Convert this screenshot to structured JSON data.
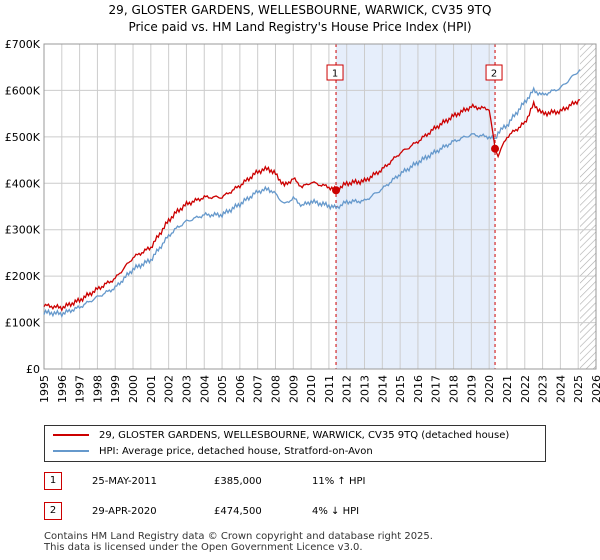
{
  "header": {
    "title": "29, GLOSTER GARDENS, WELLESBOURNE, WARWICK, CV35 9TQ",
    "subtitle": "Price paid vs. HM Land Registry's House Price Index (HPI)"
  },
  "chart_data": {
    "type": "line",
    "title": "29, GLOSTER GARDENS, WELLESBOURNE, WARWICK, CV35 9TQ",
    "subtitle": "Price paid vs. HM Land Registry's House Price Index (HPI)",
    "xlabel": "",
    "ylabel": "",
    "xlim": [
      1995,
      2026
    ],
    "ylim": [
      0,
      700000
    ],
    "yticks": [
      0,
      100000,
      200000,
      300000,
      400000,
      500000,
      600000,
      700000
    ],
    "ytick_labels": [
      "£0",
      "£100K",
      "£200K",
      "£300K",
      "£400K",
      "£500K",
      "£600K",
      "£700K"
    ],
    "xticks": [
      1995,
      1996,
      1997,
      1998,
      1999,
      2000,
      2001,
      2002,
      2003,
      2004,
      2005,
      2006,
      2007,
      2008,
      2009,
      2010,
      2011,
      2012,
      2013,
      2014,
      2015,
      2016,
      2017,
      2018,
      2019,
      2020,
      2021,
      2022,
      2023,
      2024,
      2025,
      2026
    ],
    "xtick_labels": [
      "1995",
      "1996",
      "1997",
      "1998",
      "1999",
      "2000",
      "2001",
      "2002",
      "2003",
      "2004",
      "2005",
      "2006",
      "2007",
      "2008",
      "2009",
      "2010",
      "2011",
      "2012",
      "2013",
      "2014",
      "2015",
      "2016",
      "2017",
      "2018",
      "2019",
      "2020",
      "2021",
      "2022",
      "2023",
      "2024",
      "2025",
      "2026"
    ],
    "grid": true,
    "shaded_period": [
      2011.4,
      2020.33
    ],
    "hatched_from": 2025.1,
    "series": [
      {
        "name": "29, GLOSTER GARDENS, WELLESBOURNE, WARWICK, CV35 9TQ (detached house)",
        "color": "#cc0000",
        "x": [
          1995,
          1996,
          1997,
          1998,
          1999,
          2000,
          2001,
          2002,
          2002.5,
          2003,
          2004,
          2005,
          2006,
          2007,
          2007.6,
          2008,
          2008.5,
          2009,
          2009.5,
          2010,
          2011,
          2011.4,
          2012,
          2013,
          2014,
          2015,
          2016,
          2017,
          2018,
          2019,
          2020,
          2020.33,
          2020.5,
          2021,
          2022,
          2022.5,
          2023,
          2024,
          2025.1
        ],
        "values": [
          137000,
          132000,
          148000,
          172000,
          195000,
          240000,
          262000,
          320000,
          340000,
          355000,
          370000,
          370000,
          395000,
          425000,
          432000,
          420000,
          395000,
          410000,
          392000,
          402000,
          392000,
          385000,
          400000,
          405000,
          430000,
          465000,
          490000,
          520000,
          545000,
          565000,
          560000,
          474500,
          460000,
          500000,
          530000,
          570000,
          550000,
          555000,
          580000
        ]
      },
      {
        "name": "HPI: Average price, detached house, Stratford-on-Avon",
        "color": "#6699cc",
        "x": [
          1995,
          1996,
          1997,
          1998,
          1999,
          2000,
          2001,
          2002,
          2002.5,
          2003,
          2004,
          2005,
          2006,
          2007,
          2007.6,
          2008,
          2008.5,
          2009,
          2009.5,
          2010,
          2011,
          2011.4,
          2012,
          2013,
          2014,
          2015,
          2016,
          2017,
          2018,
          2019,
          2020,
          2020.33,
          2020.5,
          2021,
          2022,
          2022.5,
          2023,
          2024,
          2025.1
        ],
        "values": [
          122000,
          119000,
          133000,
          155000,
          175000,
          215000,
          235000,
          287000,
          305000,
          318000,
          332000,
          332000,
          355000,
          382000,
          388000,
          377000,
          355000,
          368000,
          352000,
          361000,
          352000,
          347000,
          360000,
          362000,
          388000,
          420000,
          445000,
          468000,
          490000,
          505000,
          500000,
          494000,
          510000,
          525000,
          575000,
          600000,
          590000,
          605000,
          645000
        ]
      }
    ],
    "annotations": [
      {
        "label": "1",
        "x": 2011.4,
        "value": 385000
      },
      {
        "label": "2",
        "x": 2020.33,
        "value": 474500
      }
    ]
  },
  "legend": {
    "series1": "29, GLOSTER GARDENS, WELLESBOURNE, WARWICK, CV35 9TQ (detached house)",
    "series2": "HPI: Average price, detached house, Stratford-on-Avon"
  },
  "sales": [
    {
      "num": "1",
      "date": "25-MAY-2011",
      "price": "£385,000",
      "hpi": "11% ↑ HPI"
    },
    {
      "num": "2",
      "date": "29-APR-2020",
      "price": "£474,500",
      "hpi": "4% ↓ HPI"
    }
  ],
  "footer": {
    "line1": "Contains HM Land Registry data © Crown copyright and database right 2025.",
    "line2": "This data is licensed under the Open Government Licence v3.0."
  },
  "colors": {
    "red": "#cc0000",
    "blue": "#6699cc",
    "shade": "#e6eefb",
    "grid": "#cccccc"
  }
}
